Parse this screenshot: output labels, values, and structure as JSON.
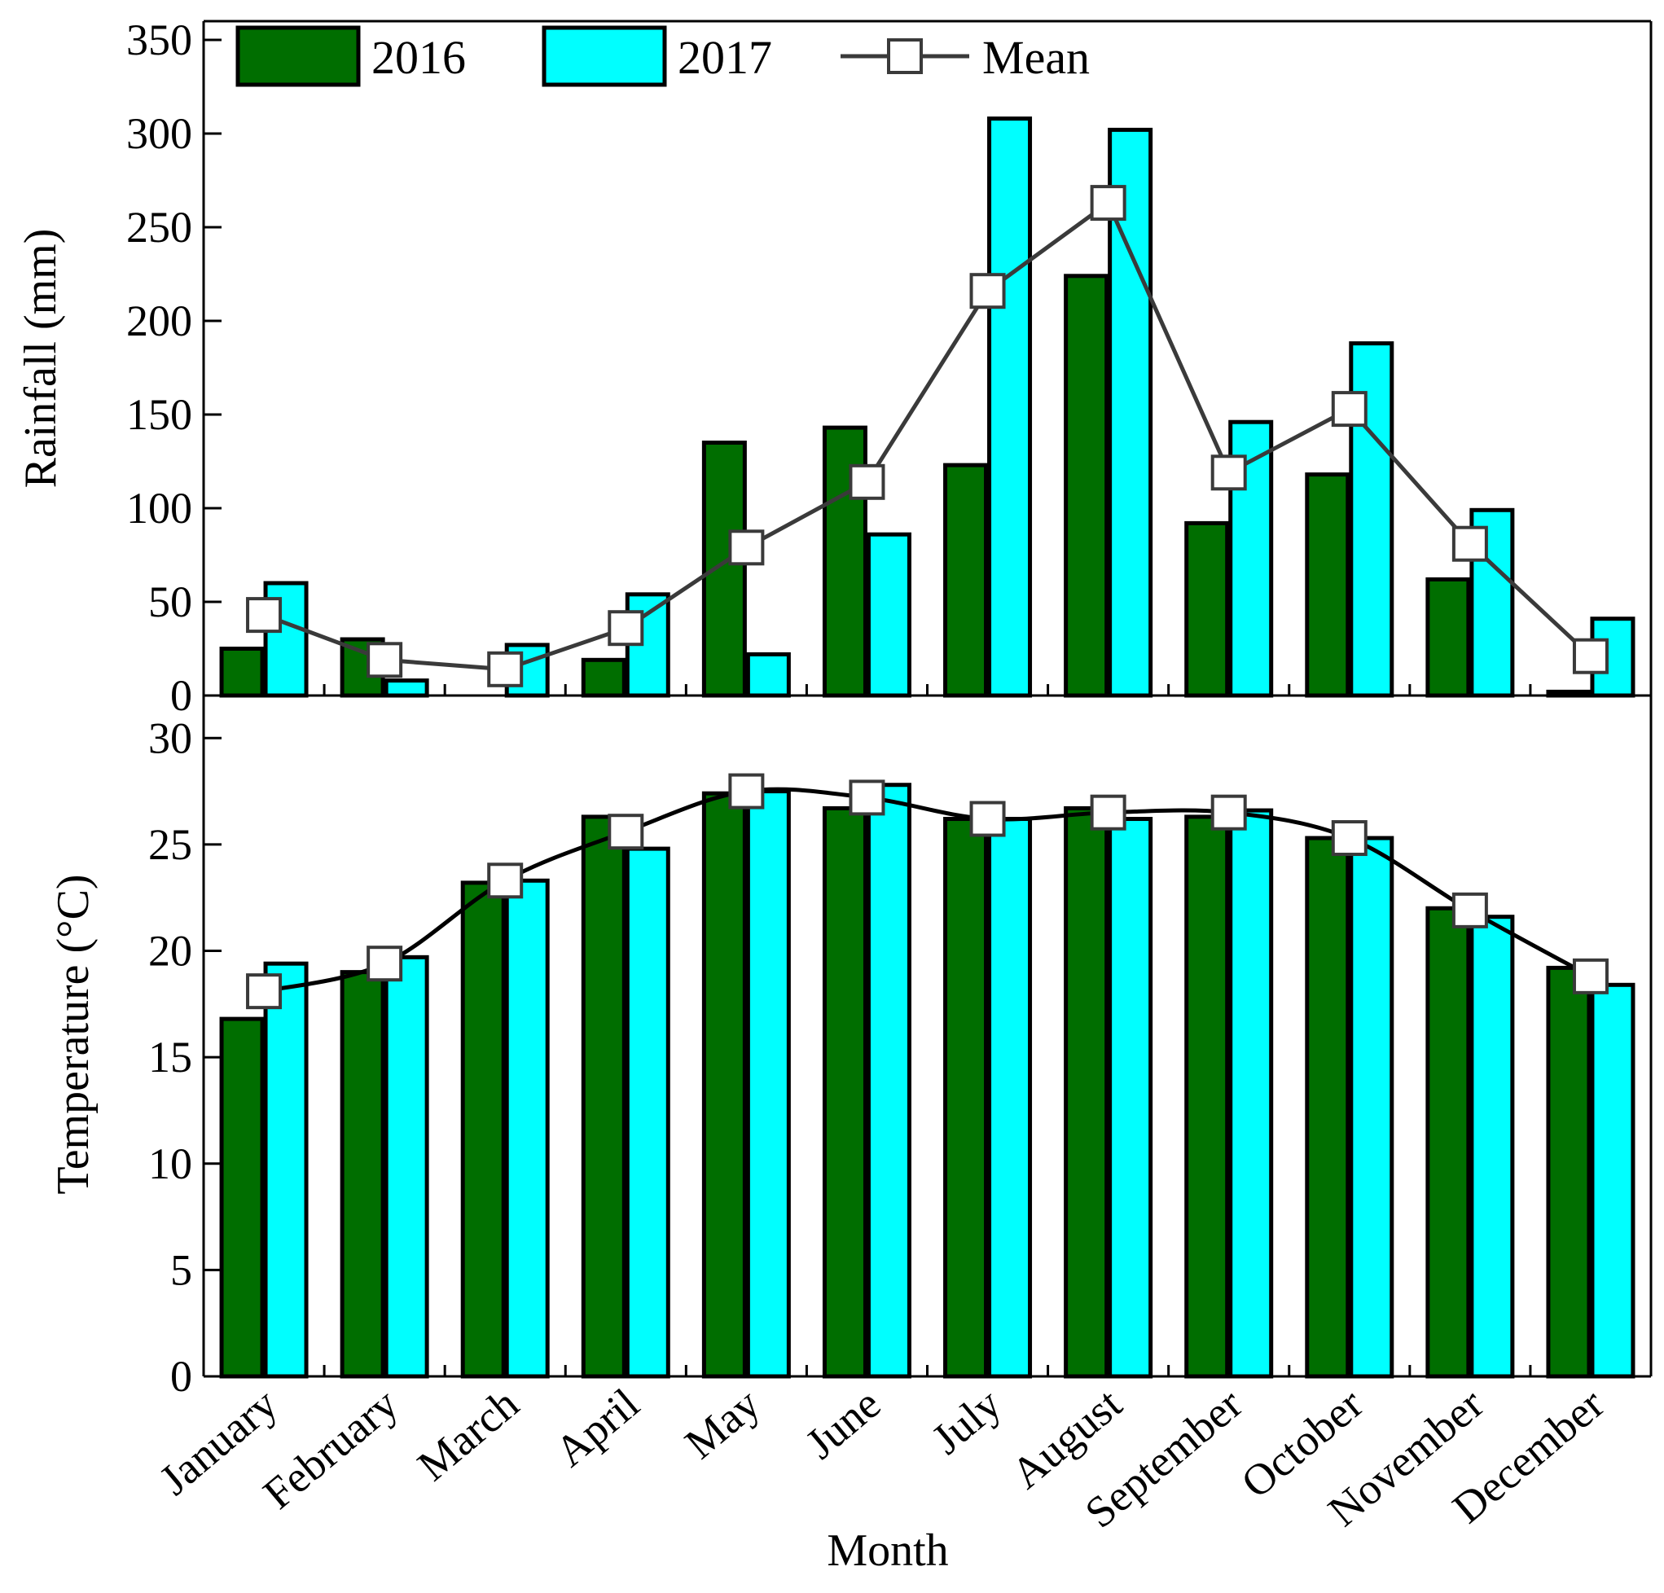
{
  "colors": {
    "y2016": "#006e00",
    "y2017": "#00ffff",
    "mean_line": "#3a3a3a",
    "mean_marker": "#ffffff",
    "axis": "#000000"
  },
  "legend": {
    "labels": [
      "2016",
      "2017",
      "Mean"
    ]
  },
  "xlabel": "Month",
  "chart_data": [
    {
      "type": "bar",
      "title": "",
      "ylabel": "Rainfall (mm)",
      "ylim": [
        0,
        360
      ],
      "yticks": [
        0,
        50,
        100,
        150,
        200,
        250,
        300,
        350
      ],
      "categories": [
        "January",
        "February",
        "March",
        "April",
        "May",
        "June",
        "July",
        "August",
        "September",
        "October",
        "November",
        "December"
      ],
      "series": [
        {
          "name": "2016",
          "values": [
            25,
            30,
            0,
            19,
            135,
            143,
            123,
            224,
            92,
            118,
            62,
            2
          ]
        },
        {
          "name": "2017",
          "values": [
            60,
            8,
            27,
            54,
            22,
            86,
            308,
            302,
            146,
            188,
            99,
            41
          ]
        },
        {
          "name": "Mean",
          "type": "line",
          "values": [
            43,
            19,
            14,
            36,
            79,
            114,
            216,
            263,
            119,
            153,
            81,
            21
          ]
        }
      ]
    },
    {
      "type": "bar",
      "title": "",
      "ylabel": "Temperature (°C)",
      "ylim": [
        0,
        32
      ],
      "yticks": [
        0,
        5,
        10,
        15,
        20,
        25,
        30
      ],
      "categories": [
        "January",
        "February",
        "March",
        "April",
        "May",
        "June",
        "July",
        "August",
        "September",
        "October",
        "November",
        "December"
      ],
      "series": [
        {
          "name": "2016",
          "values": [
            16.8,
            19.0,
            23.2,
            26.3,
            27.4,
            26.7,
            26.2,
            26.7,
            26.3,
            25.3,
            22.0,
            19.2
          ]
        },
        {
          "name": "2017",
          "values": [
            19.4,
            19.7,
            23.3,
            24.8,
            27.5,
            27.8,
            26.2,
            26.2,
            26.6,
            25.3,
            21.6,
            18.4
          ]
        },
        {
          "name": "Mean",
          "type": "line",
          "values": [
            18.1,
            19.4,
            23.3,
            25.6,
            27.5,
            27.2,
            26.2,
            26.5,
            26.5,
            25.3,
            21.9,
            18.8
          ]
        }
      ]
    }
  ]
}
